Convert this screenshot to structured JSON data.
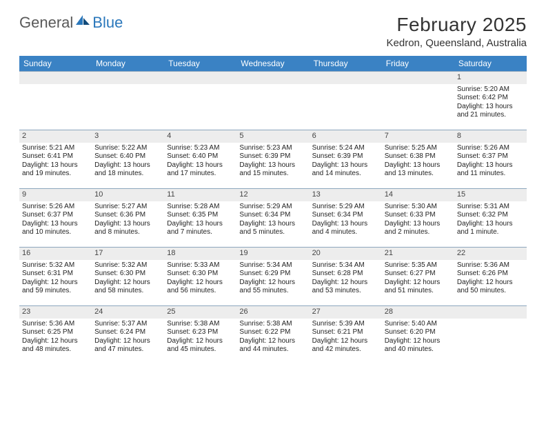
{
  "logo": {
    "general": "General",
    "blue": "Blue"
  },
  "title": {
    "month": "February 2025",
    "location": "Kedron, Queensland, Australia"
  },
  "colors": {
    "header_bg": "#3a82c4",
    "header_text": "#ffffff",
    "daynum_bg": "#ededed",
    "rule": "#8ca6bd",
    "body_text": "#222222",
    "title_text": "#333333",
    "logo_gray": "#595959",
    "logo_blue": "#2a77bb"
  },
  "days_of_week": [
    "Sunday",
    "Monday",
    "Tuesday",
    "Wednesday",
    "Thursday",
    "Friday",
    "Saturday"
  ],
  "weeks": [
    [
      null,
      null,
      null,
      null,
      null,
      null,
      {
        "n": "1",
        "sunrise": "Sunrise: 5:20 AM",
        "sunset": "Sunset: 6:42 PM",
        "daylight": "Daylight: 13 hours and 21 minutes."
      }
    ],
    [
      {
        "n": "2",
        "sunrise": "Sunrise: 5:21 AM",
        "sunset": "Sunset: 6:41 PM",
        "daylight": "Daylight: 13 hours and 19 minutes."
      },
      {
        "n": "3",
        "sunrise": "Sunrise: 5:22 AM",
        "sunset": "Sunset: 6:40 PM",
        "daylight": "Daylight: 13 hours and 18 minutes."
      },
      {
        "n": "4",
        "sunrise": "Sunrise: 5:23 AM",
        "sunset": "Sunset: 6:40 PM",
        "daylight": "Daylight: 13 hours and 17 minutes."
      },
      {
        "n": "5",
        "sunrise": "Sunrise: 5:23 AM",
        "sunset": "Sunset: 6:39 PM",
        "daylight": "Daylight: 13 hours and 15 minutes."
      },
      {
        "n": "6",
        "sunrise": "Sunrise: 5:24 AM",
        "sunset": "Sunset: 6:39 PM",
        "daylight": "Daylight: 13 hours and 14 minutes."
      },
      {
        "n": "7",
        "sunrise": "Sunrise: 5:25 AM",
        "sunset": "Sunset: 6:38 PM",
        "daylight": "Daylight: 13 hours and 13 minutes."
      },
      {
        "n": "8",
        "sunrise": "Sunrise: 5:26 AM",
        "sunset": "Sunset: 6:37 PM",
        "daylight": "Daylight: 13 hours and 11 minutes."
      }
    ],
    [
      {
        "n": "9",
        "sunrise": "Sunrise: 5:26 AM",
        "sunset": "Sunset: 6:37 PM",
        "daylight": "Daylight: 13 hours and 10 minutes."
      },
      {
        "n": "10",
        "sunrise": "Sunrise: 5:27 AM",
        "sunset": "Sunset: 6:36 PM",
        "daylight": "Daylight: 13 hours and 8 minutes."
      },
      {
        "n": "11",
        "sunrise": "Sunrise: 5:28 AM",
        "sunset": "Sunset: 6:35 PM",
        "daylight": "Daylight: 13 hours and 7 minutes."
      },
      {
        "n": "12",
        "sunrise": "Sunrise: 5:29 AM",
        "sunset": "Sunset: 6:34 PM",
        "daylight": "Daylight: 13 hours and 5 minutes."
      },
      {
        "n": "13",
        "sunrise": "Sunrise: 5:29 AM",
        "sunset": "Sunset: 6:34 PM",
        "daylight": "Daylight: 13 hours and 4 minutes."
      },
      {
        "n": "14",
        "sunrise": "Sunrise: 5:30 AM",
        "sunset": "Sunset: 6:33 PM",
        "daylight": "Daylight: 13 hours and 2 minutes."
      },
      {
        "n": "15",
        "sunrise": "Sunrise: 5:31 AM",
        "sunset": "Sunset: 6:32 PM",
        "daylight": "Daylight: 13 hours and 1 minute."
      }
    ],
    [
      {
        "n": "16",
        "sunrise": "Sunrise: 5:32 AM",
        "sunset": "Sunset: 6:31 PM",
        "daylight": "Daylight: 12 hours and 59 minutes."
      },
      {
        "n": "17",
        "sunrise": "Sunrise: 5:32 AM",
        "sunset": "Sunset: 6:30 PM",
        "daylight": "Daylight: 12 hours and 58 minutes."
      },
      {
        "n": "18",
        "sunrise": "Sunrise: 5:33 AM",
        "sunset": "Sunset: 6:30 PM",
        "daylight": "Daylight: 12 hours and 56 minutes."
      },
      {
        "n": "19",
        "sunrise": "Sunrise: 5:34 AM",
        "sunset": "Sunset: 6:29 PM",
        "daylight": "Daylight: 12 hours and 55 minutes."
      },
      {
        "n": "20",
        "sunrise": "Sunrise: 5:34 AM",
        "sunset": "Sunset: 6:28 PM",
        "daylight": "Daylight: 12 hours and 53 minutes."
      },
      {
        "n": "21",
        "sunrise": "Sunrise: 5:35 AM",
        "sunset": "Sunset: 6:27 PM",
        "daylight": "Daylight: 12 hours and 51 minutes."
      },
      {
        "n": "22",
        "sunrise": "Sunrise: 5:36 AM",
        "sunset": "Sunset: 6:26 PM",
        "daylight": "Daylight: 12 hours and 50 minutes."
      }
    ],
    [
      {
        "n": "23",
        "sunrise": "Sunrise: 5:36 AM",
        "sunset": "Sunset: 6:25 PM",
        "daylight": "Daylight: 12 hours and 48 minutes."
      },
      {
        "n": "24",
        "sunrise": "Sunrise: 5:37 AM",
        "sunset": "Sunset: 6:24 PM",
        "daylight": "Daylight: 12 hours and 47 minutes."
      },
      {
        "n": "25",
        "sunrise": "Sunrise: 5:38 AM",
        "sunset": "Sunset: 6:23 PM",
        "daylight": "Daylight: 12 hours and 45 minutes."
      },
      {
        "n": "26",
        "sunrise": "Sunrise: 5:38 AM",
        "sunset": "Sunset: 6:22 PM",
        "daylight": "Daylight: 12 hours and 44 minutes."
      },
      {
        "n": "27",
        "sunrise": "Sunrise: 5:39 AM",
        "sunset": "Sunset: 6:21 PM",
        "daylight": "Daylight: 12 hours and 42 minutes."
      },
      {
        "n": "28",
        "sunrise": "Sunrise: 5:40 AM",
        "sunset": "Sunset: 6:20 PM",
        "daylight": "Daylight: 12 hours and 40 minutes."
      },
      null
    ]
  ]
}
